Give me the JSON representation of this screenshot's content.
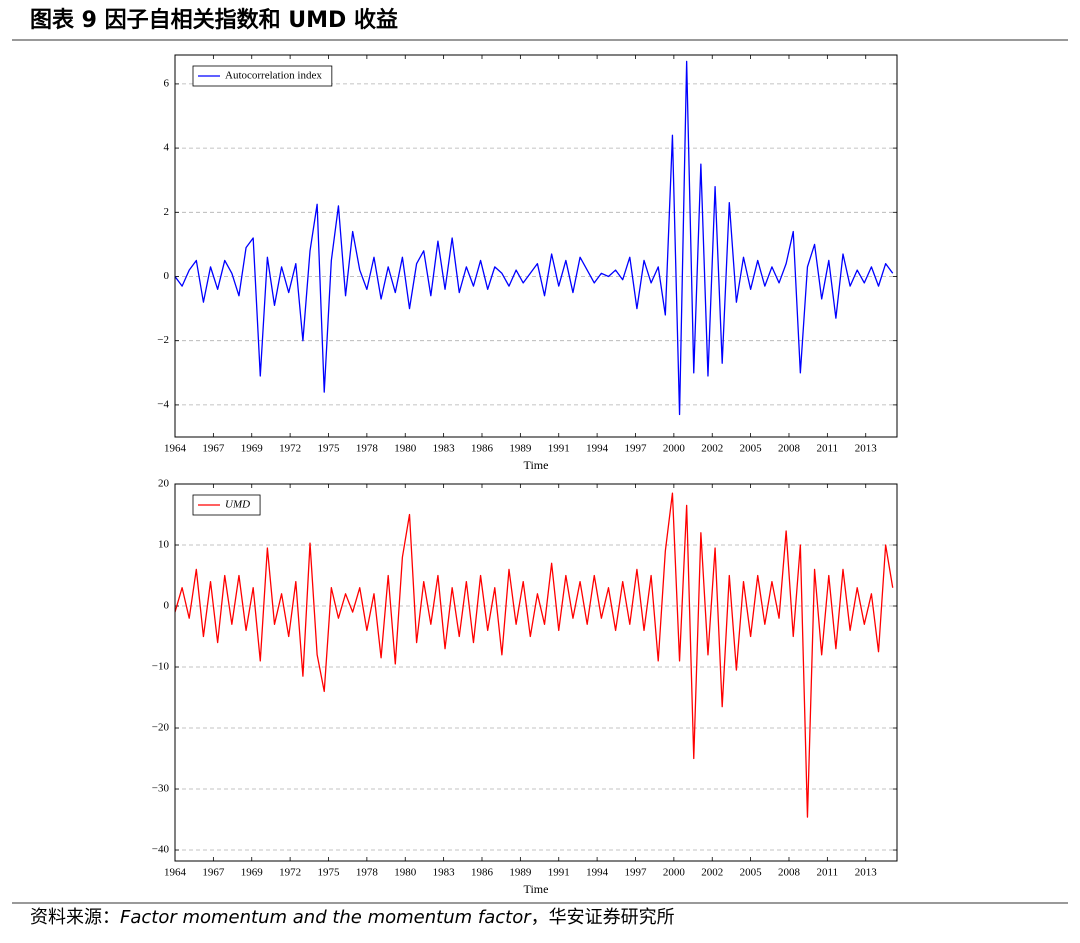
{
  "header": {
    "title": "图表 9 因子自相关指数和 UMD 收益"
  },
  "chart_data": [
    {
      "type": "line",
      "xlabel": "Time",
      "legend": "upper left",
      "grid": true,
      "xlim": [
        1964,
        2014.8
      ],
      "ylim": [
        -5,
        6.9
      ],
      "xticks": [
        {
          "value": 1964,
          "label": "1964"
        },
        {
          "value": 1966.7,
          "label": "1967"
        },
        {
          "value": 1969.4,
          "label": "1969"
        },
        {
          "value": 1972.1,
          "label": "1972"
        },
        {
          "value": 1974.8,
          "label": "1975"
        },
        {
          "value": 1977.5,
          "label": "1978"
        },
        {
          "value": 1980.2,
          "label": "1980"
        },
        {
          "value": 1982.9,
          "label": "1983"
        },
        {
          "value": 1985.6,
          "label": "1986"
        },
        {
          "value": 1988.3,
          "label": "1989"
        },
        {
          "value": 1991.0,
          "label": "1991"
        },
        {
          "value": 1993.7,
          "label": "1994"
        },
        {
          "value": 1996.4,
          "label": "1997"
        },
        {
          "value": 1999.1,
          "label": "2000"
        },
        {
          "value": 2001.8,
          "label": "2002"
        },
        {
          "value": 2004.5,
          "label": "2005"
        },
        {
          "value": 2007.2,
          "label": "2008"
        },
        {
          "value": 2009.9,
          "label": "2011"
        },
        {
          "value": 2012.6,
          "label": "2013"
        }
      ],
      "yticks": [
        {
          "value": -4,
          "label": "−4"
        },
        {
          "value": -2,
          "label": "−2"
        },
        0,
        2,
        4,
        6
      ],
      "x": [
        1964.0,
        1964.5,
        1965.0,
        1965.5,
        1966.0,
        1966.5,
        1967.0,
        1967.5,
        1968.0,
        1968.5,
        1969.0,
        1969.5,
        1970.0,
        1970.5,
        1971.0,
        1971.5,
        1972.0,
        1972.5,
        1973.0,
        1973.5,
        1974.0,
        1974.5,
        1975.0,
        1975.5,
        1976.0,
        1976.5,
        1977.0,
        1977.5,
        1978.0,
        1978.5,
        1979.0,
        1979.5,
        1980.0,
        1980.5,
        1981.0,
        1981.5,
        1982.0,
        1982.5,
        1983.0,
        1983.5,
        1984.0,
        1984.5,
        1985.0,
        1985.5,
        1986.0,
        1986.5,
        1987.0,
        1987.5,
        1988.0,
        1988.5,
        1989.0,
        1989.5,
        1990.0,
        1990.5,
        1991.0,
        1991.5,
        1992.0,
        1992.5,
        1993.0,
        1993.5,
        1994.0,
        1994.5,
        1995.0,
        1995.5,
        1996.0,
        1996.5,
        1997.0,
        1997.5,
        1998.0,
        1998.5,
        1999.0,
        1999.5,
        2000.0,
        2000.5,
        2001.0,
        2001.5,
        2002.0,
        2002.5,
        2003.0,
        2003.5,
        2004.0,
        2004.5,
        2005.0,
        2005.5,
        2006.0,
        2006.5,
        2007.0,
        2007.5,
        2008.0,
        2008.5,
        2009.0,
        2009.5,
        2010.0,
        2010.5,
        2011.0,
        2011.5,
        2012.0,
        2012.5,
        2013.0,
        2013.5,
        2014.0,
        2014.5
      ],
      "series": [
        {
          "name": "Autocorrelation index",
          "color": "#0000ff",
          "values": [
            0.0,
            -0.3,
            0.2,
            0.5,
            -0.8,
            0.3,
            -0.4,
            0.5,
            0.1,
            -0.6,
            0.9,
            1.2,
            -3.1,
            0.6,
            -0.9,
            0.3,
            -0.5,
            0.4,
            -2.0,
            0.8,
            2.25,
            -3.6,
            0.5,
            2.2,
            -0.6,
            1.4,
            0.2,
            -0.4,
            0.6,
            -0.7,
            0.3,
            -0.5,
            0.6,
            -1.0,
            0.4,
            0.8,
            -0.6,
            1.1,
            -0.4,
            1.2,
            -0.5,
            0.3,
            -0.3,
            0.5,
            -0.4,
            0.3,
            0.1,
            -0.3,
            0.2,
            -0.2,
            0.1,
            0.4,
            -0.6,
            0.7,
            -0.3,
            0.5,
            -0.5,
            0.6,
            0.2,
            -0.2,
            0.1,
            0.0,
            0.2,
            -0.1,
            0.6,
            -1.0,
            0.5,
            -0.2,
            0.3,
            -1.2,
            4.4,
            -4.3,
            6.7,
            -3.0,
            3.5,
            -3.1,
            2.8,
            -2.7,
            2.3,
            -0.8,
            0.6,
            -0.4,
            0.5,
            -0.3,
            0.3,
            -0.2,
            0.4,
            1.4,
            -3.0,
            0.3,
            1.0,
            -0.7,
            0.5,
            -1.3,
            0.7,
            -0.3,
            0.2,
            -0.2,
            0.3,
            -0.3,
            0.4,
            0.1
          ]
        }
      ]
    },
    {
      "type": "line",
      "xlabel": "Time",
      "legend": "upper left",
      "grid": true,
      "xlim": [
        1964,
        2014.8
      ],
      "ylim": [
        -41.8,
        20
      ],
      "xticks": [
        {
          "value": 1964,
          "label": "1964"
        },
        {
          "value": 1966.7,
          "label": "1967"
        },
        {
          "value": 1969.4,
          "label": "1969"
        },
        {
          "value": 1972.1,
          "label": "1972"
        },
        {
          "value": 1974.8,
          "label": "1975"
        },
        {
          "value": 1977.5,
          "label": "1978"
        },
        {
          "value": 1980.2,
          "label": "1980"
        },
        {
          "value": 1982.9,
          "label": "1983"
        },
        {
          "value": 1985.6,
          "label": "1986"
        },
        {
          "value": 1988.3,
          "label": "1989"
        },
        {
          "value": 1991.0,
          "label": "1991"
        },
        {
          "value": 1993.7,
          "label": "1994"
        },
        {
          "value": 1996.4,
          "label": "1997"
        },
        {
          "value": 1999.1,
          "label": "2000"
        },
        {
          "value": 2001.8,
          "label": "2002"
        },
        {
          "value": 2004.5,
          "label": "2005"
        },
        {
          "value": 2007.2,
          "label": "2008"
        },
        {
          "value": 2009.9,
          "label": "2011"
        },
        {
          "value": 2012.6,
          "label": "2013"
        }
      ],
      "yticks": [
        {
          "value": -40,
          "label": "−40"
        },
        {
          "value": -30,
          "label": "−30"
        },
        {
          "value": -20,
          "label": "−20"
        },
        {
          "value": -10,
          "label": "−10"
        },
        0,
        10,
        20
      ],
      "x": [
        1964.0,
        1964.5,
        1965.0,
        1965.5,
        1966.0,
        1966.5,
        1967.0,
        1967.5,
        1968.0,
        1968.5,
        1969.0,
        1969.5,
        1970.0,
        1970.5,
        1971.0,
        1971.5,
        1972.0,
        1972.5,
        1973.0,
        1973.5,
        1974.0,
        1974.5,
        1975.0,
        1975.5,
        1976.0,
        1976.5,
        1977.0,
        1977.5,
        1978.0,
        1978.5,
        1979.0,
        1979.5,
        1980.0,
        1980.5,
        1981.0,
        1981.5,
        1982.0,
        1982.5,
        1983.0,
        1983.5,
        1984.0,
        1984.5,
        1985.0,
        1985.5,
        1986.0,
        1986.5,
        1987.0,
        1987.5,
        1988.0,
        1988.5,
        1989.0,
        1989.5,
        1990.0,
        1990.5,
        1991.0,
        1991.5,
        1992.0,
        1992.5,
        1993.0,
        1993.5,
        1994.0,
        1994.5,
        1995.0,
        1995.5,
        1996.0,
        1996.5,
        1997.0,
        1997.5,
        1998.0,
        1998.5,
        1999.0,
        1999.5,
        2000.0,
        2000.5,
        2001.0,
        2001.5,
        2002.0,
        2002.5,
        2003.0,
        2003.5,
        2004.0,
        2004.5,
        2005.0,
        2005.5,
        2006.0,
        2006.5,
        2007.0,
        2007.5,
        2008.0,
        2008.5,
        2009.0,
        2009.5,
        2010.0,
        2010.5,
        2011.0,
        2011.5,
        2012.0,
        2012.5,
        2013.0,
        2013.5,
        2014.0,
        2014.5
      ],
      "series": [
        {
          "name": "UMD",
          "color": "#ff0000",
          "values": [
            -1,
            3,
            -2,
            6,
            -5,
            4,
            -6,
            5,
            -3,
            5,
            -4,
            3,
            -9,
            9.5,
            -3,
            2,
            -5,
            4,
            -11.5,
            10.3,
            -8,
            -14,
            3,
            -2,
            2,
            -1,
            3,
            -4,
            2,
            -8.5,
            5,
            -9.5,
            8,
            15,
            -6,
            4,
            -3,
            5,
            -7,
            3,
            -5,
            4,
            -6,
            5,
            -4,
            3,
            -8,
            6,
            -3,
            4,
            -5,
            2,
            -3,
            7,
            -4,
            5,
            -2,
            4,
            -3,
            5,
            -2,
            3,
            -4,
            4,
            -3,
            6,
            -4,
            5,
            -9,
            9,
            18.5,
            -9,
            16.5,
            -25,
            12,
            -8,
            9.5,
            -16.5,
            5,
            -10.5,
            4,
            -5,
            5,
            -3,
            4,
            -2,
            12.3,
            -5,
            10,
            -34.6,
            6,
            -8,
            5,
            -7,
            6,
            -4,
            3,
            -3,
            2,
            -7.5,
            10,
            3
          ]
        }
      ]
    }
  ],
  "footer": {
    "source_prefix": "资料来源：",
    "source_title": "Factor momentum and the momentum factor",
    "source_suffix": "，华安证券研究所"
  }
}
